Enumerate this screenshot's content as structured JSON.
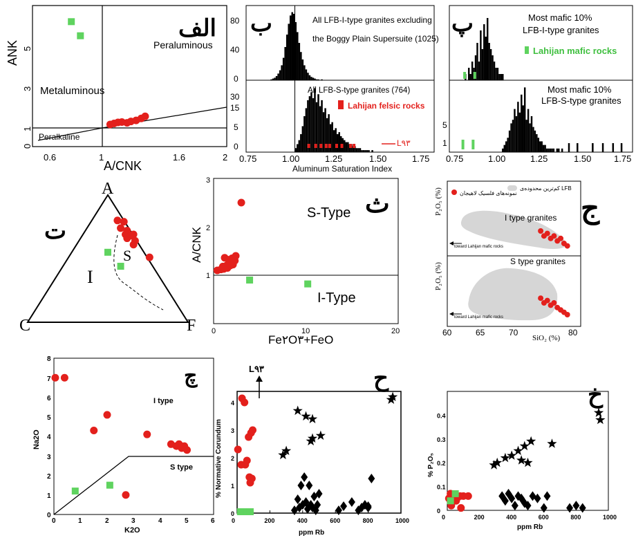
{
  "colors": {
    "red": "#e3201c",
    "green": "#5fd35f",
    "black": "#000000",
    "grey": "#d6d6d6"
  },
  "chart_data": [
    {
      "id": "alef",
      "type": "scatter",
      "panel_letter": "الف",
      "xlabel": "A/CNK",
      "ylabel": "ANK",
      "xlim": [
        0.5,
        2
      ],
      "ylim": [
        0,
        7
      ],
      "xticks": [
        "0.6",
        "1",
        "1.6",
        "2"
      ],
      "yticks": [
        "0",
        "1",
        "3",
        "5"
      ],
      "region_labels": [
        "Peraluminous",
        "Metaluminous",
        "Peralkaline"
      ],
      "series": [
        {
          "color": "red",
          "x": [
            1.1,
            1.13,
            1.16,
            1.19,
            1.23,
            1.26,
            1.3,
            1.34,
            1.37
          ],
          "y": [
            1.1,
            1.15,
            1.2,
            1.22,
            1.18,
            1.25,
            1.3,
            1.4,
            1.5
          ]
        },
        {
          "color": "green",
          "x": [
            0.8,
            0.87
          ],
          "y": [
            6.2,
            5.5
          ]
        }
      ]
    },
    {
      "id": "be_top",
      "type": "bar",
      "panel_letter": "ب",
      "annotation_lines": [
        "All LFB-I-type granites excluding",
        "the Boggy Plain Supersuite (1025)"
      ],
      "ylim": [
        0,
        90
      ],
      "yticks": [
        "0",
        "40",
        "80"
      ],
      "histogram": {
        "start": 0.85,
        "step": 0.01,
        "counts": [
          0,
          1,
          2,
          3,
          5,
          8,
          12,
          18,
          27,
          40,
          55,
          68,
          78,
          82,
          80,
          70,
          58,
          45,
          34,
          25,
          18,
          13,
          9,
          6,
          4,
          3,
          2,
          1,
          1,
          0,
          1
        ]
      }
    },
    {
      "id": "be_bottom",
      "type": "bar",
      "panel_letter": "",
      "annotation_lines": [
        "All LFB-S-type granites (764)"
      ],
      "legend": "Lahijan felsic rocks",
      "arrow_label": "L۹۳",
      "xlabel": "Aluminum Saturation Index",
      "xlim": [
        0.72,
        1.8
      ],
      "xticks": [
        "0.75",
        "1.00",
        "1.25",
        "1.50",
        "1.75"
      ],
      "yticks": [
        "0",
        "5",
        "15",
        "30"
      ],
      "ylim": [
        0,
        36
      ],
      "histogram": {
        "start": 1.0,
        "step": 0.01,
        "counts": [
          2,
          4,
          6,
          9,
          13,
          18,
          22,
          26,
          28,
          30,
          27,
          32,
          25,
          29,
          23,
          26,
          20,
          22,
          17,
          19,
          14,
          15,
          11,
          12,
          9,
          10,
          8,
          7,
          6,
          5,
          5,
          4,
          4,
          3,
          3,
          2,
          2,
          2,
          1,
          1,
          1,
          1,
          1,
          0,
          1
        ]
      },
      "felsic_points": [
        1.08,
        1.12,
        1.15,
        1.18,
        1.2,
        1.24,
        1.27,
        1.32,
        1.34
      ]
    },
    {
      "id": "pe_top",
      "type": "bar",
      "panel_letter": "پ",
      "annotation_lines": [
        "Most mafic 10%",
        "LFB-I-type granites"
      ],
      "legend": "Lahijan mafic rocks",
      "histogram": {
        "start": 0.81,
        "step": 0.01,
        "counts": [
          1,
          0,
          2,
          1,
          3,
          2,
          4,
          6,
          3,
          8,
          5,
          9,
          7,
          10,
          6,
          5,
          4,
          3,
          2,
          2,
          1,
          1,
          1
        ]
      },
      "mafic_points": [
        0.81,
        0.87
      ]
    },
    {
      "id": "pe_bottom",
      "type": "bar",
      "panel_letter": "",
      "annotation_lines": [
        "Most mafic 10%",
        "LFB-S-type granites"
      ],
      "xlim": [
        0.72,
        1.8
      ],
      "xticks": [
        "0.75",
        "1.00",
        "1.25",
        "1.50",
        "1.75"
      ],
      "yticks": [
        "1",
        "5"
      ],
      "histogram": {
        "start": 1.03,
        "step": 0.01,
        "counts": [
          1,
          2,
          3,
          4,
          6,
          8,
          9,
          12,
          10,
          14,
          11,
          16,
          13,
          18,
          9,
          12,
          8,
          10,
          7,
          6,
          5,
          4,
          3,
          3,
          2,
          2,
          1,
          1,
          1,
          1,
          1,
          0,
          1,
          1,
          0,
          1
        ]
      },
      "scattered_bars": [
        1.42,
        1.47,
        1.56,
        1.62,
        1.68,
        1.73
      ],
      "mafic_points": [
        0.8,
        0.86
      ]
    },
    {
      "id": "te",
      "type": "scatter",
      "panel_letter": "ت",
      "vertex_labels": [
        "A",
        "C",
        "F"
      ],
      "region_labels": [
        "I",
        "S"
      ],
      "series": [
        {
          "color": "red",
          "points": [
            [
              0.56,
              0.8
            ],
            [
              0.6,
              0.79
            ],
            [
              0.58,
              0.74
            ],
            [
              0.62,
              0.72
            ],
            [
              0.61,
              0.69
            ],
            [
              0.64,
              0.68
            ],
            [
              0.66,
              0.69
            ],
            [
              0.67,
              0.64
            ],
            [
              0.62,
              0.66
            ],
            [
              0.66,
              0.61
            ],
            [
              0.76,
              0.51
            ]
          ]
        },
        {
          "color": "green",
          "points": [
            [
              0.5,
              0.55
            ],
            [
              0.58,
              0.44
            ]
          ]
        }
      ]
    },
    {
      "id": "the",
      "type": "scatter",
      "panel_letter": "ث",
      "xlabel": "Fe۲O۳+FeO",
      "ylabel": "A/CNK",
      "xlim": [
        0,
        20
      ],
      "ylim": [
        0,
        3
      ],
      "xticks": [
        "0",
        "10",
        "20"
      ],
      "yticks": [
        "1",
        "2",
        "3"
      ],
      "region_labels": [
        "S-Type",
        "I-Type"
      ],
      "series": [
        {
          "color": "red",
          "x": [
            0.4,
            0.8,
            1.1,
            1.5,
            1.8,
            2.1,
            2.3,
            1.2,
            1.6,
            2.0,
            2.4,
            1.0,
            1.4,
            3.0
          ],
          "y": [
            1.1,
            1.12,
            1.13,
            1.15,
            1.2,
            1.22,
            1.3,
            1.36,
            1.32,
            1.35,
            1.4,
            1.18,
            1.2,
            2.5
          ]
        },
        {
          "color": "green",
          "x": [
            3.9,
            10.2
          ],
          "y": [
            0.9,
            0.82
          ]
        }
      ]
    },
    {
      "id": "jim",
      "type": "scatter",
      "panel_letter": "ج",
      "legend_field": "کم‌ترین محدوده‌ی LFB",
      "legend_points": "نمونه‌های فلسیک لاهیجان",
      "xlabel": "SiO₂ (%)",
      "ylabel_top": "P₂O₅ (%)",
      "ylabel_bottom": "P₂O₅ (%)",
      "xlim": [
        60,
        80
      ],
      "xticks": [
        "60",
        "65",
        "70",
        "75",
        "80"
      ],
      "region_labels": [
        "I type granites",
        "S type granites"
      ],
      "arrow_label": "toward Lahijan mafic rocks",
      "series": [
        {
          "color": "red",
          "panel": "top",
          "x": [
            74,
            74.5,
            75,
            75.5,
            76,
            76.5,
            77,
            77.5,
            78
          ],
          "y": [
            0.1,
            0.08,
            0.09,
            0.07,
            0.08,
            0.06,
            0.07,
            0.05,
            0.04
          ]
        },
        {
          "color": "red",
          "panel": "bottom",
          "x": [
            74,
            74.5,
            75,
            75.5,
            76,
            76.5,
            77,
            77.5,
            78
          ],
          "y": [
            0.12,
            0.1,
            0.11,
            0.09,
            0.1,
            0.08,
            0.07,
            0.06,
            0.05
          ]
        }
      ]
    },
    {
      "id": "che",
      "type": "scatter",
      "panel_letter": "چ",
      "xlabel": "K2O",
      "ylabel": "Na2O",
      "xlim": [
        0,
        6
      ],
      "ylim": [
        0,
        8
      ],
      "xticks": [
        "0",
        "1",
        "2",
        "3",
        "4",
        "5",
        "6"
      ],
      "yticks": [
        "0",
        "1",
        "2",
        "3",
        "4",
        "5",
        "6",
        "7",
        "8"
      ],
      "region_labels": [
        "I type",
        "S type"
      ],
      "series": [
        {
          "color": "red",
          "x": [
            0.05,
            0.4,
            1.5,
            2.0,
            3.5,
            4.4,
            4.6,
            4.7,
            4.8,
            4.9,
            5.0,
            2.7
          ],
          "y": [
            7.0,
            7.0,
            4.3,
            5.1,
            4.1,
            3.6,
            3.5,
            3.6,
            3.4,
            3.5,
            3.3,
            1.0
          ]
        },
        {
          "color": "green",
          "x": [
            0.8,
            2.1
          ],
          "y": [
            1.2,
            1.5
          ]
        }
      ]
    },
    {
      "id": "he",
      "type": "scatter",
      "panel_letter": "ح",
      "xlabel": "ppm Rb",
      "ylabel": "% Normative Corundum",
      "arrow_label": "L۹۳",
      "xlim": [
        0,
        1000
      ],
      "ylim": [
        0,
        4.4
      ],
      "xticks": [
        "0",
        "200",
        "400",
        "600",
        "800",
        "1000"
      ],
      "yticks": [
        "0",
        "1",
        "2",
        "3",
        "4"
      ],
      "series": [
        {
          "color": "red",
          "marker": "circle",
          "x": [
            5,
            30,
            45,
            50,
            60,
            70,
            75,
            80,
            85,
            90,
            95,
            25
          ],
          "y": [
            2.3,
            4.15,
            4.0,
            1.75,
            1.9,
            2.75,
            1.3,
            1.1,
            2.9,
            1.25,
            3.0,
            1.75
          ]
        },
        {
          "color": "green",
          "marker": "square",
          "x": [
            20,
            40,
            60,
            80
          ],
          "y": [
            0.05,
            0.05,
            0.05,
            0.05
          ]
        },
        {
          "color": "black",
          "marker": "star",
          "x": [
            280,
            300,
            370,
            420,
            450,
            460,
            460,
            510,
            940,
            950
          ],
          "y": [
            2.1,
            2.25,
            3.7,
            3.5,
            2.6,
            3.4,
            2.7,
            2.8,
            4.1,
            4.2
          ]
        },
        {
          "color": "black",
          "marker": "diamond",
          "x": [
            350,
            370,
            380,
            390,
            400,
            410,
            420,
            430,
            440,
            450,
            460,
            470,
            480,
            490,
            500,
            620,
            650,
            700,
            760,
            780,
            800,
            820,
            800,
            740
          ],
          "y": [
            0.1,
            0.5,
            0.2,
            1.0,
            0.3,
            1.3,
            0.4,
            0.15,
            1.0,
            0.3,
            0.2,
            0.6,
            0.1,
            0.3,
            0.7,
            0.1,
            0.25,
            0.4,
            0.2,
            0.3,
            0.2,
            1.25,
            0.25,
            0.1
          ]
        }
      ]
    },
    {
      "id": "khe",
      "type": "scatter",
      "panel_letter": "خ",
      "xlabel": "ppm Rb",
      "ylabel": "% P₂O₅",
      "xlim": [
        0,
        1000
      ],
      "ylim": [
        0,
        0.5
      ],
      "xticks": [
        "0",
        "200",
        "400",
        "600",
        "800",
        "1000"
      ],
      "yticks": [
        "0",
        "0.1",
        "0.2",
        "0.3",
        "0.4"
      ],
      "series": [
        {
          "color": "red",
          "marker": "circle",
          "x": [
            10,
            20,
            40,
            60,
            80,
            100,
            130,
            25,
            55,
            85
          ],
          "y": [
            0.05,
            0.07,
            0.06,
            0.05,
            0.06,
            0.06,
            0.06,
            0.02,
            0.04,
            0.01
          ]
        },
        {
          "color": "green",
          "marker": "square",
          "x": [
            20,
            50
          ],
          "y": [
            0.04,
            0.07
          ]
        },
        {
          "color": "black",
          "marker": "star",
          "x": [
            290,
            310,
            360,
            400,
            440,
            460,
            480,
            500,
            520,
            650,
            940,
            950
          ],
          "y": [
            0.19,
            0.2,
            0.22,
            0.23,
            0.25,
            0.21,
            0.27,
            0.2,
            0.29,
            0.28,
            0.41,
            0.38
          ]
        },
        {
          "color": "black",
          "marker": "diamond",
          "x": [
            340,
            360,
            380,
            400,
            420,
            440,
            460,
            480,
            500,
            530,
            560,
            600,
            620,
            760,
            800,
            840
          ],
          "y": [
            0.06,
            0.04,
            0.07,
            0.05,
            0.02,
            0.06,
            0.05,
            0.03,
            0.02,
            0.06,
            0.05,
            0.01,
            0.06,
            0.01,
            0.02,
            0.01
          ]
        }
      ]
    }
  ]
}
